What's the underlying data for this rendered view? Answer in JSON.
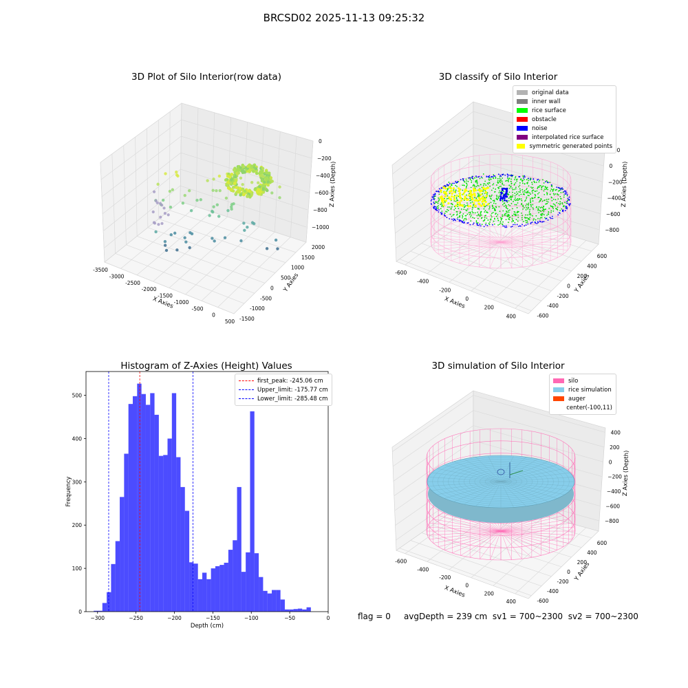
{
  "suptitle": "BRCSD02 2025-11-13 09:25:32",
  "panels": {
    "raw3d": {
      "title": "3D Plot of Silo Interior(row data)",
      "xlabel": "X Axies",
      "ylabel": "Y Axies",
      "zlabel": "Z Axies (Depth)",
      "xticks": [
        "-3500",
        "-3000",
        "-2500",
        "-2000",
        "-1500",
        "-1000",
        "-500",
        "0",
        "500"
      ],
      "yticks": [
        "-1500",
        "-1000",
        "-500",
        "0",
        "500",
        "1000",
        "1500",
        "2000"
      ],
      "zticks": [
        "0",
        "−200",
        "−400",
        "−600",
        "−800",
        "−1000"
      ]
    },
    "classify3d": {
      "title": "3D classify of Silo Interior",
      "xlabel": "X Axies",
      "ylabel": "Y Axies",
      "zlabel": "Z Axies (Depth)",
      "xticks": [
        "-600",
        "-400",
        "-200",
        "0",
        "200",
        "400"
      ],
      "yticks": [
        "-600",
        "-400",
        "-200",
        "0",
        "200",
        "400",
        "600"
      ],
      "zticks": [
        "200",
        "0",
        "−200",
        "−400",
        "−600",
        "−800"
      ],
      "legend": [
        {
          "label": "original data",
          "color": "#b3b3b3"
        },
        {
          "label": "inner wall",
          "color": "#808080"
        },
        {
          "label": "rice surface",
          "color": "#00ff00"
        },
        {
          "label": "obstacle",
          "color": "#ff0000"
        },
        {
          "label": "noise",
          "color": "#0000ff"
        },
        {
          "label": "interpolated rice surface",
          "color": "#800080"
        },
        {
          "label": "symmetric generated points",
          "color": "#ffff00"
        }
      ]
    },
    "simulation3d": {
      "title": "3D simulation of Silo Interior",
      "xlabel": "X Axies",
      "ylabel": "Y Axies",
      "zlabel": "Z Axies (Depth)",
      "xticks": [
        "-600",
        "-400",
        "-200",
        "0",
        "200",
        "400"
      ],
      "yticks": [
        "-600",
        "-400",
        "-200",
        "0",
        "200",
        "400",
        "600"
      ],
      "zticks": [
        "400",
        "200",
        "0",
        "−200",
        "−400",
        "−600",
        "−800"
      ],
      "legend": [
        {
          "label": "silo",
          "color": "#ff69b4"
        },
        {
          "label": "rice simulation",
          "color": "#87ceeb"
        },
        {
          "label": "auger",
          "color": "#ff4500"
        },
        {
          "label": "center(-100,11)",
          "color": ""
        }
      ]
    }
  },
  "footer": {
    "flag": "flag = 0",
    "avg": "avgDepth = 239 cm",
    "sv1": "sv1 = 700~2300",
    "sv2": "sv2 = 700~2300"
  },
  "chart_data": {
    "type": "bar",
    "title": "Histogram of Z-Axies (Height) Values",
    "xlabel": "Depth (cm)",
    "ylabel": "Frequency",
    "xlim": [
      -315,
      0
    ],
    "ylim": [
      0,
      555
    ],
    "xticks": [
      -300,
      -250,
      -200,
      -150,
      -100,
      -50,
      0
    ],
    "yticks": [
      0,
      100,
      200,
      300,
      400,
      500
    ],
    "bar_color": "#0000ff",
    "bin_width": 5.65,
    "bin_start": -305.0,
    "values": [
      2,
      2,
      20,
      45,
      110,
      163,
      265,
      365,
      480,
      498,
      527,
      503,
      478,
      505,
      455,
      360,
      362,
      400,
      505,
      357,
      288,
      233,
      114,
      111,
      75,
      90,
      75,
      100,
      105,
      108,
      113,
      143,
      165,
      288,
      92,
      137,
      463,
      135,
      80,
      48,
      42,
      50,
      50,
      28,
      5,
      5,
      6,
      7,
      5,
      10
    ],
    "series": [
      {
        "name": "first_peak: -245.06 cm",
        "x": -245.06,
        "color": "#ff0000"
      },
      {
        "name": "Upper_limit: -175.77 cm",
        "x": -175.77,
        "color": "#0000ff"
      },
      {
        "name": "Lower_limit: -285.48 cm",
        "x": -285.48,
        "color": "#0000ff"
      }
    ]
  }
}
